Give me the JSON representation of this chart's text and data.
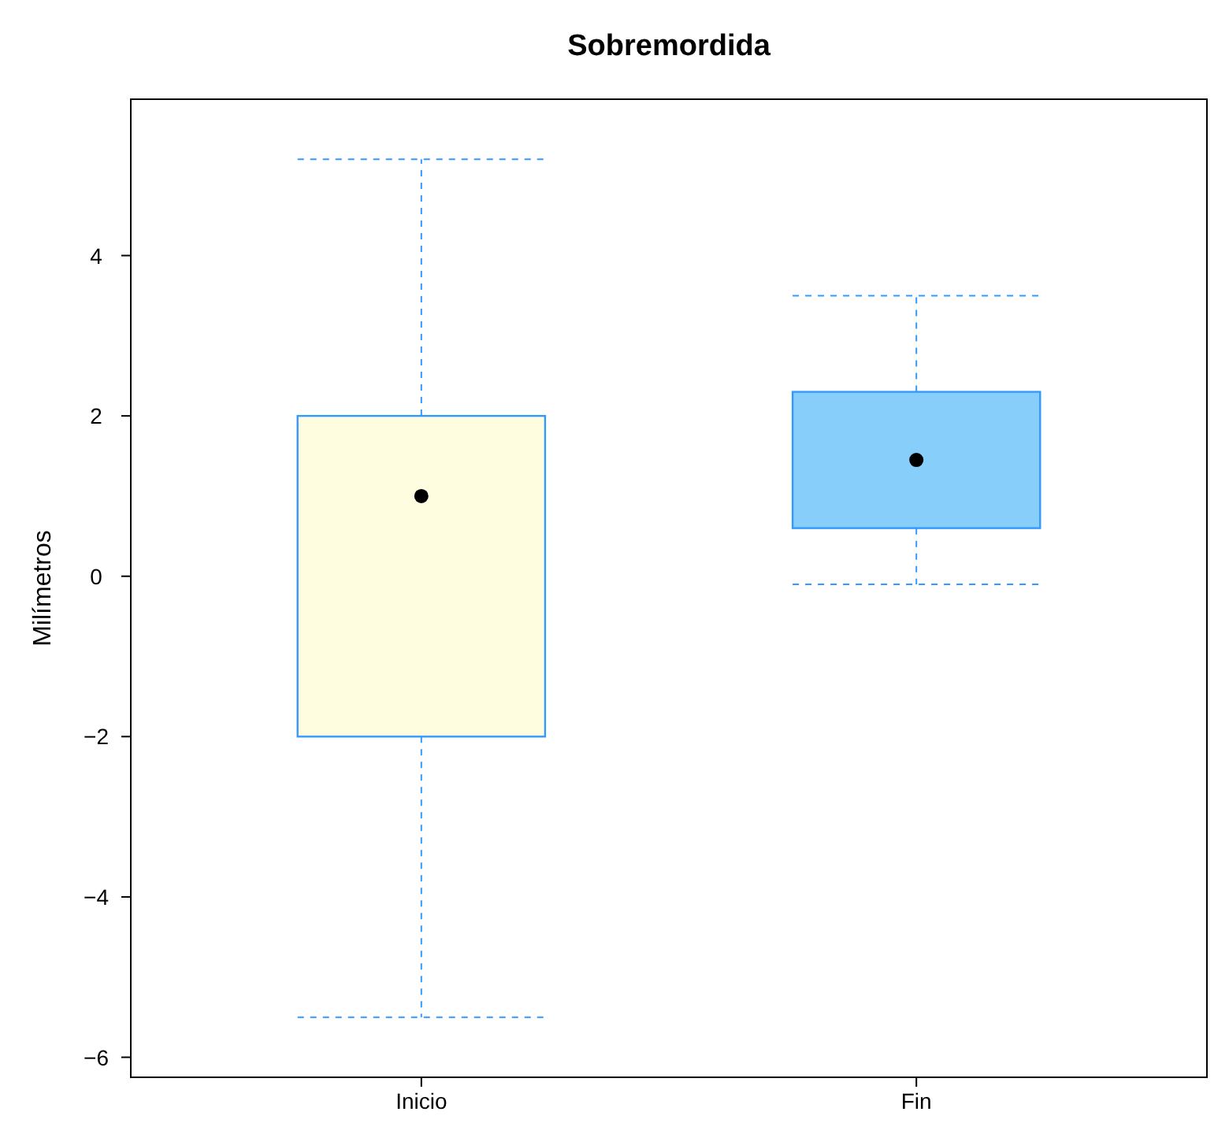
{
  "chart_data": {
    "type": "box",
    "title": "Sobremordida",
    "ylabel": "Milímetros",
    "categories": [
      "Inicio",
      "Fin"
    ],
    "boxes": [
      {
        "low": -5.5,
        "q1": -2,
        "median": 1,
        "q3": 2,
        "high": 5.2
      },
      {
        "low": -0.1,
        "q1": 0.6,
        "median": 1.45,
        "q3": 2.3,
        "high": 3.5
      }
    ],
    "colors": [
      "#fffde0",
      "#87cefa"
    ],
    "color": "#3399ff",
    "line_style": "dashed",
    "ylim": [
      -6.25,
      5.95
    ],
    "yticks": [
      -6,
      -4,
      -2,
      0,
      2,
      4
    ]
  }
}
